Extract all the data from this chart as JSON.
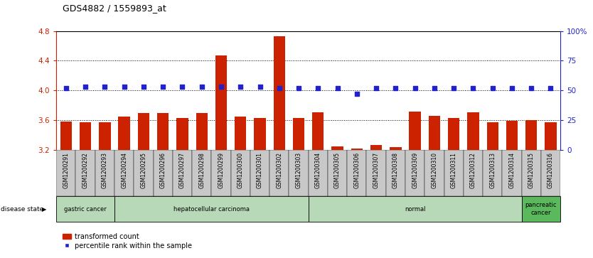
{
  "title": "GDS4882 / 1559893_at",
  "samples": [
    "GSM1200291",
    "GSM1200292",
    "GSM1200293",
    "GSM1200294",
    "GSM1200295",
    "GSM1200296",
    "GSM1200297",
    "GSM1200298",
    "GSM1200299",
    "GSM1200300",
    "GSM1200301",
    "GSM1200302",
    "GSM1200303",
    "GSM1200304",
    "GSM1200305",
    "GSM1200306",
    "GSM1200307",
    "GSM1200308",
    "GSM1200309",
    "GSM1200310",
    "GSM1200311",
    "GSM1200312",
    "GSM1200313",
    "GSM1200314",
    "GSM1200315",
    "GSM1200316"
  ],
  "transformed_count": [
    3.58,
    3.57,
    3.57,
    3.65,
    3.69,
    3.69,
    3.63,
    3.69,
    4.47,
    3.65,
    3.63,
    4.73,
    3.63,
    3.7,
    3.24,
    3.21,
    3.26,
    3.23,
    3.71,
    3.66,
    3.63,
    3.7,
    3.57,
    3.59,
    3.6,
    3.57
  ],
  "percentile_rank": [
    52,
    53,
    53,
    53,
    53,
    53,
    53,
    53,
    53,
    53,
    53,
    52,
    52,
    52,
    52,
    47,
    52,
    52,
    52,
    52,
    52,
    52,
    52,
    52,
    52,
    52
  ],
  "disease_groups": [
    {
      "label": "gastric cancer",
      "start": 0,
      "end": 2,
      "color": "#b8d9b8"
    },
    {
      "label": "hepatocellular carcinoma",
      "start": 3,
      "end": 12,
      "color": "#b8d9b8"
    },
    {
      "label": "normal",
      "start": 13,
      "end": 23,
      "color": "#b8d9b8"
    },
    {
      "label": "pancreatic\ncancer",
      "start": 24,
      "end": 25,
      "color": "#5cb85c"
    }
  ],
  "ylim": [
    3.2,
    4.8
  ],
  "y_ticks_left": [
    3.2,
    3.6,
    4.0,
    4.4,
    4.8
  ],
  "y_ticks_right": [
    0,
    25,
    50,
    75,
    100
  ],
  "bar_color": "#CC2200",
  "dot_color": "#2222CC",
  "bg_color": "#FFFFFF",
  "tick_area_color": "#C8C8C8",
  "grid_color": "#000000",
  "legend_bar_label": "transformed count",
  "legend_dot_label": "percentile rank within the sample"
}
